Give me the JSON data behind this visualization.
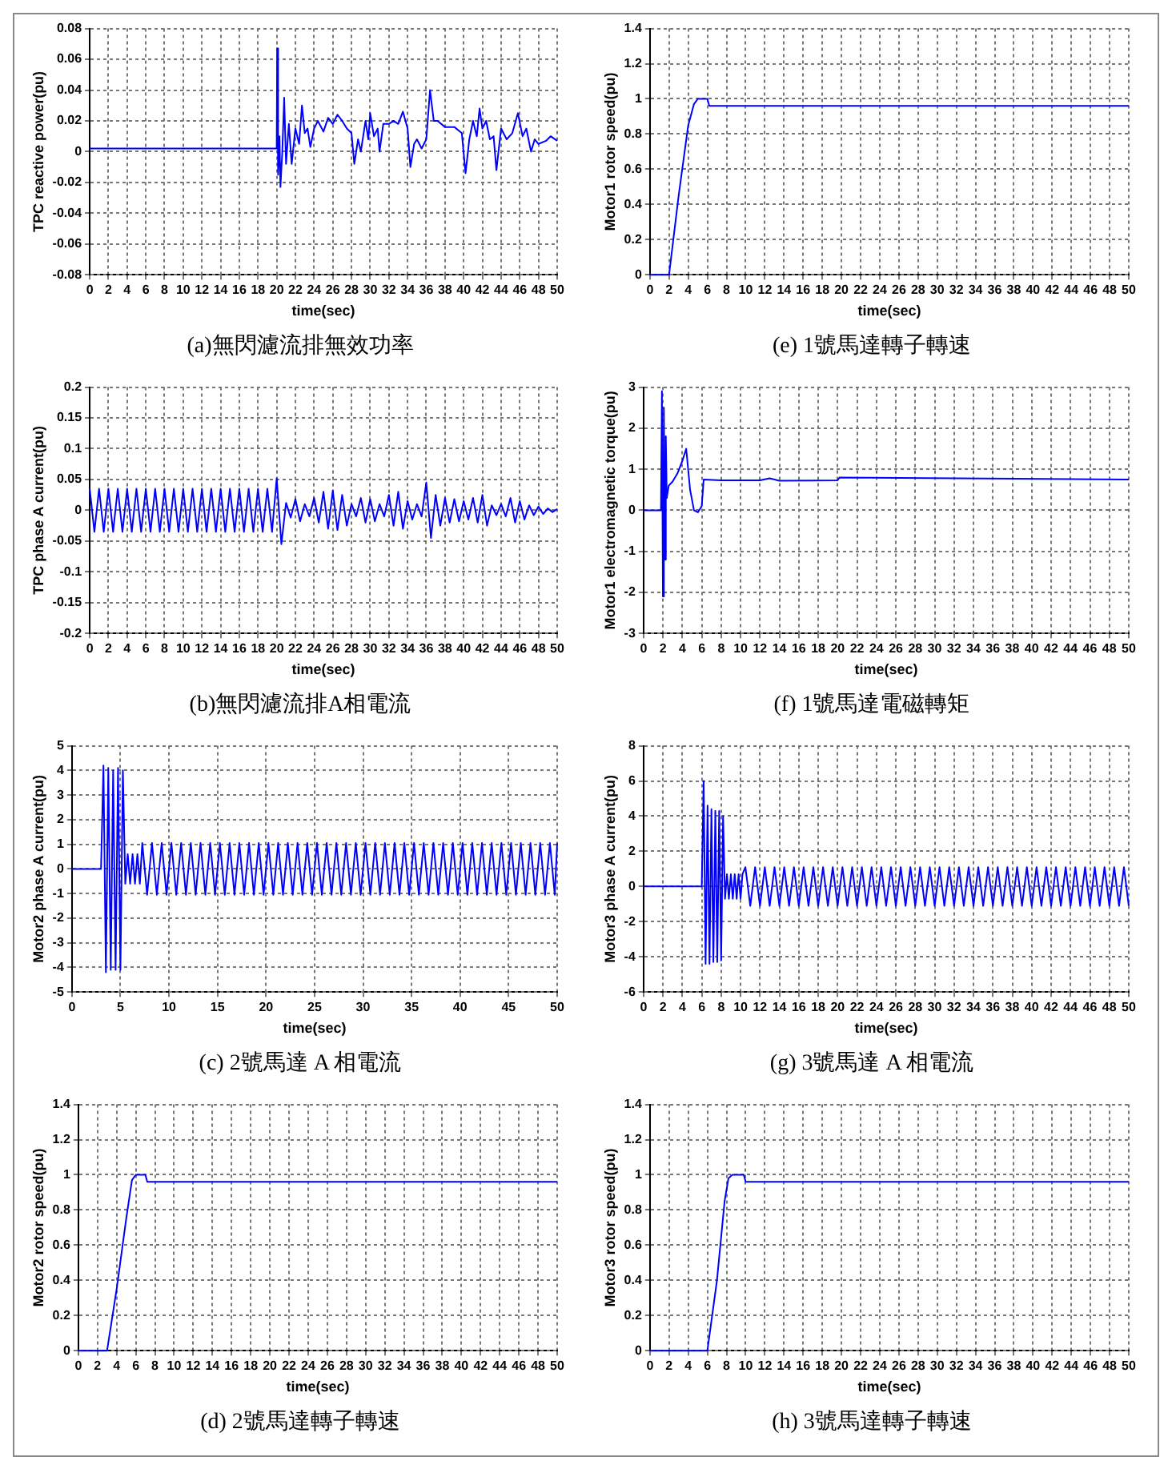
{
  "chart_data": [
    {
      "type": "line",
      "title": "(a)無閃濾流排無效功率",
      "xlabel": "time(sec)",
      "ylabel": "TPC reactive power(pu)",
      "xlim": [
        0,
        50
      ],
      "xticks": [
        0,
        2,
        4,
        6,
        8,
        10,
        12,
        14,
        16,
        18,
        20,
        22,
        24,
        26,
        28,
        30,
        32,
        34,
        36,
        38,
        40,
        42,
        44,
        46,
        48,
        50
      ],
      "ylim": [
        -0.08,
        0.08
      ],
      "yticks": [
        -0.08,
        -0.06,
        -0.04,
        -0.02,
        0,
        0.02,
        0.04,
        0.06,
        0.08
      ],
      "grid": true,
      "marker": "none",
      "line_style": "solid",
      "series": [
        {
          "color": "#0000ff",
          "x": [
            0,
            20,
            20.05,
            20.15,
            20.3,
            20.4,
            20.6,
            20.8,
            21,
            21.3,
            21.6,
            22,
            22.4,
            22.7,
            23,
            23.3,
            23.6,
            24,
            24.4,
            25,
            25.5,
            26,
            26.5,
            27,
            27.5,
            28,
            28.3,
            28.7,
            29,
            29.5,
            29.8,
            30,
            30.4,
            30.8,
            31,
            31.4,
            32,
            32.5,
            33,
            33.5,
            34,
            34.3,
            34.7,
            35,
            35.5,
            36,
            36.4,
            36.8,
            37.2,
            38,
            39,
            39.8,
            40.2,
            40.6,
            41,
            41.4,
            41.7,
            42,
            42.4,
            42.8,
            43.2,
            43.5,
            44,
            44.6,
            45.2,
            45.8,
            46.3,
            46.7,
            47.2,
            47.6,
            48,
            48.8,
            49.3,
            50
          ],
          "values": [
            0.002,
            0.002,
            0.067,
            -0.015,
            0.01,
            -0.023,
            0,
            0.035,
            -0.008,
            0.018,
            -0.008,
            0.015,
            0.005,
            0.03,
            0.012,
            0.015,
            0.003,
            0.015,
            0.02,
            0.013,
            0.022,
            0.018,
            0.024,
            0.02,
            0.015,
            0.012,
            -0.008,
            0.008,
            0,
            0.02,
            0.008,
            0.025,
            0.01,
            0.015,
            0,
            0.018,
            0.018,
            0.02,
            0.018,
            0.026,
            0.015,
            -0.01,
            0.005,
            0.008,
            0.002,
            0.008,
            0.04,
            0.02,
            0.02,
            0.016,
            0.016,
            0.012,
            -0.014,
            0.008,
            0.02,
            0.01,
            0.028,
            0.015,
            0.02,
            0.008,
            0.01,
            -0.012,
            0.015,
            0.008,
            0.012,
            0.025,
            0.01,
            0.015,
            0,
            0.008,
            0.005,
            0.007,
            0.01,
            0.007
          ]
        }
      ]
    },
    {
      "type": "line",
      "title": "(e) 1號馬達轉子轉速",
      "xlabel": "time(sec)",
      "ylabel": "Motor1 rotor speed(pu)",
      "xlim": [
        0,
        50
      ],
      "xticks": [
        0,
        2,
        4,
        6,
        8,
        10,
        12,
        14,
        16,
        18,
        20,
        22,
        24,
        26,
        28,
        30,
        32,
        34,
        36,
        38,
        40,
        42,
        44,
        46,
        48,
        50
      ],
      "ylim": [
        0,
        1.4
      ],
      "yticks": [
        0,
        0.2,
        0.4,
        0.6,
        0.8,
        1,
        1.2,
        1.4
      ],
      "grid": true,
      "marker": "none",
      "line_style": "solid",
      "series": [
        {
          "color": "#0000ff",
          "x": [
            0,
            2,
            3,
            4,
            4.6,
            5,
            5.8,
            6,
            6.2,
            8,
            12,
            16,
            50
          ],
          "values": [
            0,
            0,
            0.45,
            0.85,
            0.97,
            1,
            1,
            1,
            0.96,
            0.96,
            0.96,
            0.96,
            0.96
          ]
        }
      ]
    },
    {
      "type": "line",
      "title": "(b)無閃濾流排A相電流",
      "xlabel": "time(sec)",
      "ylabel": "TPC phase A current(pu)",
      "xlim": [
        0,
        50
      ],
      "xticks": [
        0,
        2,
        4,
        6,
        8,
        10,
        12,
        14,
        16,
        18,
        20,
        22,
        24,
        26,
        28,
        30,
        32,
        34,
        36,
        38,
        40,
        42,
        44,
        46,
        48,
        50
      ],
      "ylim": [
        -0.2,
        0.2
      ],
      "yticks": [
        -0.2,
        -0.15,
        -0.1,
        -0.05,
        0,
        0.05,
        0.1,
        0.15,
        0.2
      ],
      "grid": true,
      "marker": "none",
      "line_style": "solid",
      "series": [
        {
          "color": "#0000ff",
          "x": [
            0,
            0.5,
            1,
            1.5,
            2,
            2.5,
            3,
            3.5,
            4,
            4.5,
            5,
            5.5,
            6,
            6.5,
            7,
            7.5,
            8,
            8.5,
            9,
            9.5,
            10,
            10.5,
            11,
            11.5,
            12,
            12.5,
            13,
            13.5,
            14,
            14.5,
            15,
            15.5,
            16,
            16.5,
            17,
            17.5,
            18,
            18.5,
            19,
            19.5,
            20,
            20.5,
            21,
            21.5,
            22,
            22.5,
            23,
            23.5,
            24,
            24.5,
            25,
            25.5,
            26,
            26.5,
            27,
            27.5,
            28,
            28.5,
            29,
            29.5,
            30,
            30.5,
            31,
            31.5,
            32,
            32.5,
            33,
            33.5,
            34,
            34.5,
            35,
            35.5,
            36,
            36.5,
            37,
            37.5,
            38,
            38.5,
            39,
            39.5,
            40,
            40.5,
            41,
            41.5,
            42,
            42.5,
            43,
            43.5,
            44,
            44.5,
            45,
            45.5,
            46,
            46.5,
            47,
            47.5,
            48,
            48.5,
            49,
            49.5,
            50
          ],
          "values": [
            0.035,
            -0.035,
            0.035,
            -0.035,
            0.035,
            -0.035,
            0.035,
            -0.035,
            0.035,
            -0.035,
            0.035,
            -0.035,
            0.035,
            -0.035,
            0.035,
            -0.035,
            0.035,
            -0.035,
            0.035,
            -0.035,
            0.035,
            -0.035,
            0.035,
            -0.035,
            0.035,
            -0.035,
            0.035,
            -0.035,
            0.035,
            -0.035,
            0.035,
            -0.035,
            0.035,
            -0.035,
            0.035,
            -0.035,
            0.035,
            -0.035,
            0.035,
            -0.035,
            0.052,
            -0.055,
            0.012,
            -0.012,
            0.018,
            -0.018,
            0.01,
            -0.01,
            0.02,
            -0.02,
            0.03,
            -0.03,
            0.032,
            -0.032,
            0.025,
            -0.025,
            0.01,
            -0.01,
            0.02,
            -0.02,
            0.018,
            -0.018,
            0.01,
            -0.01,
            0.025,
            -0.025,
            0.03,
            -0.03,
            0.015,
            -0.015,
            0.01,
            -0.01,
            0.045,
            -0.045,
            0.025,
            -0.025,
            0.02,
            -0.02,
            0.018,
            -0.018,
            0.015,
            -0.015,
            0.02,
            -0.02,
            0.025,
            -0.025,
            0.008,
            -0.008,
            0.01,
            -0.01,
            0.02,
            -0.02,
            0.015,
            -0.015,
            0.008,
            -0.008,
            0.006,
            -0.006,
            0.003,
            -0.003,
            0.002
          ]
        }
      ]
    },
    {
      "type": "line",
      "title": "(f) 1號馬達電磁轉矩",
      "xlabel": "time(sec)",
      "ylabel": "Motor1 electromagnetic torque(pu)",
      "xlim": [
        0,
        50
      ],
      "xticks": [
        0,
        2,
        4,
        6,
        8,
        10,
        12,
        14,
        16,
        18,
        20,
        22,
        24,
        26,
        28,
        30,
        32,
        34,
        36,
        38,
        40,
        42,
        44,
        46,
        48,
        50
      ],
      "ylim": [
        -3,
        3
      ],
      "yticks": [
        -3,
        -2,
        -1,
        0,
        1,
        2,
        3
      ],
      "grid": true,
      "marker": "none",
      "line_style": "solid",
      "series": [
        {
          "color": "#0000ff",
          "x": [
            0,
            1.8,
            1.9,
            2,
            2.1,
            2.2,
            2.3,
            2.4,
            2.6,
            3,
            3.5,
            4,
            4.4,
            4.8,
            5.2,
            5.6,
            6,
            6.2,
            8,
            12,
            13,
            14,
            20,
            20.2,
            50
          ],
          "values": [
            0,
            0,
            2.9,
            -2.1,
            2.5,
            -1.2,
            1.8,
            0.3,
            0.6,
            0.7,
            0.9,
            1.2,
            1.5,
            0.5,
            0,
            -0.05,
            0.1,
            0.75,
            0.73,
            0.73,
            0.78,
            0.72,
            0.73,
            0.8,
            0.75
          ]
        }
      ]
    },
    {
      "type": "line",
      "title": "(c) 2號馬達 A 相電流",
      "xlabel": "time(sec)",
      "ylabel": "Motor2 phase A current(pu)",
      "xlim": [
        0,
        50
      ],
      "xticks": [
        0,
        5,
        10,
        15,
        20,
        25,
        30,
        35,
        40,
        45,
        50
      ],
      "ylim": [
        -5,
        5
      ],
      "yticks": [
        -5,
        -4,
        -3,
        -2,
        -1,
        0,
        1,
        2,
        3,
        4,
        5
      ],
      "grid": true,
      "marker": "none",
      "line_style": "solid",
      "series": [
        {
          "color": "#0000ff",
          "x": [
            0,
            3,
            3.25,
            3.5,
            3.75,
            4,
            4.25,
            4.5,
            4.75,
            5,
            5.25,
            5.5,
            5.75,
            6,
            6.25,
            6.5,
            6.75,
            7,
            7.25,
            7.75,
            8.25,
            8.75,
            9.25,
            9.75,
            10.25,
            10.75,
            11.25,
            11.75,
            12.25,
            12.75,
            13.25,
            13.75,
            14.25,
            14.75,
            15.25,
            15.75,
            16.25,
            16.75,
            17.25,
            17.75,
            18.25,
            18.75,
            19.25,
            19.75,
            20.25,
            20.75,
            21.25,
            21.75,
            22.25,
            22.75,
            23.25,
            23.75,
            24.25,
            24.75,
            25.25,
            25.75,
            26.25,
            26.75,
            27.25,
            27.75,
            28.25,
            28.75,
            29.25,
            29.75,
            30.25,
            30.75,
            31.25,
            31.75,
            32.25,
            32.75,
            33.25,
            33.75,
            34.25,
            34.75,
            35.25,
            35.75,
            36.25,
            36.75,
            37.25,
            37.75,
            38.25,
            38.75,
            39.25,
            39.75,
            40.25,
            40.75,
            41.25,
            41.75,
            42.25,
            42.75,
            43.25,
            43.75,
            44.25,
            44.75,
            45.25,
            45.75,
            46.25,
            46.75,
            47.25,
            47.75,
            48.25,
            48.75,
            49.25,
            49.75,
            50
          ],
          "values": [
            0,
            0,
            4.2,
            -4.2,
            4.1,
            -4.1,
            4,
            -4.1,
            4.1,
            -4.1,
            4,
            -0.6,
            0.6,
            -0.6,
            0.6,
            -0.6,
            0.6,
            -0.6,
            1.05,
            -1.05,
            1.05,
            -1.05,
            1.05,
            -1.05,
            1.05,
            -1.05,
            1.05,
            -1.05,
            1.05,
            -1.05,
            1.05,
            -1.05,
            1.05,
            -1.05,
            1.05,
            -1.05,
            1.05,
            -1.05,
            1.05,
            -1.05,
            1.05,
            -1.05,
            1.05,
            -1.05,
            1.05,
            -1.05,
            1.05,
            -1.05,
            1.05,
            -1.05,
            1.05,
            -1.05,
            1.05,
            -1.05,
            1.05,
            -1.05,
            1.05,
            -1.05,
            1.05,
            -1.05,
            1.05,
            -1.05,
            1.05,
            -1.05,
            1.05,
            -1.05,
            1.05,
            -1.05,
            1.05,
            -1.05,
            1.05,
            -1.05,
            1.05,
            -1.05,
            1.05,
            -1.05,
            1.05,
            -1.05,
            1.05,
            -1.05,
            1.05,
            -1.05,
            1.05,
            -1.05,
            1.05,
            -1.05,
            1.05,
            -1.05,
            1.05,
            -1.05,
            1.05,
            -1.05,
            1.05,
            -1.05,
            1.05,
            -1.05,
            1.05,
            -1.05,
            1.05,
            -1.05,
            1.05,
            -1.05,
            1.05,
            -1.05,
            1.05
          ]
        }
      ]
    },
    {
      "type": "line",
      "title": "(g) 3號馬達 A 相電流",
      "xlabel": "time(sec)",
      "ylabel": "Motor3 phase A current(pu)",
      "xlim": [
        0,
        50
      ],
      "xticks": [
        0,
        2,
        4,
        6,
        8,
        10,
        12,
        14,
        16,
        18,
        20,
        22,
        24,
        26,
        28,
        30,
        32,
        34,
        36,
        38,
        40,
        42,
        44,
        46,
        48,
        50
      ],
      "ylim": [
        -6,
        8
      ],
      "yticks": [
        -6,
        -4,
        -2,
        0,
        2,
        4,
        6,
        8
      ],
      "grid": true,
      "marker": "none",
      "line_style": "solid",
      "series": [
        {
          "color": "#0000ff",
          "x": [
            0,
            6,
            6.2,
            6.4,
            6.6,
            6.8,
            7,
            7.2,
            7.4,
            7.6,
            7.8,
            8,
            8.2,
            8.4,
            8.6,
            8.8,
            9,
            9.2,
            9.4,
            9.6,
            9.8,
            10,
            10.2,
            10.5,
            11,
            11.5,
            12,
            12.5,
            13,
            13.5,
            14,
            14.5,
            15,
            15.5,
            16,
            16.5,
            17,
            17.5,
            18,
            18.5,
            19,
            19.5,
            20,
            20.5,
            21,
            21.5,
            22,
            22.5,
            23,
            23.5,
            24,
            24.5,
            25,
            25.5,
            26,
            26.5,
            27,
            27.5,
            28,
            28.5,
            29,
            29.5,
            30,
            30.5,
            31,
            31.5,
            32,
            32.5,
            33,
            33.5,
            34,
            34.5,
            35,
            35.5,
            36,
            36.5,
            37,
            37.5,
            38,
            38.5,
            39,
            39.5,
            40,
            40.5,
            41,
            41.5,
            42,
            42.5,
            43,
            43.5,
            44,
            44.5,
            45,
            45.5,
            46,
            46.5,
            47,
            47.5,
            48,
            48.5,
            49,
            49.5,
            50
          ],
          "values": [
            0,
            0,
            6,
            -4.4,
            4.6,
            -4.4,
            4.4,
            -4.3,
            4.3,
            -4.3,
            4.3,
            -4.2,
            4,
            -0.7,
            0.7,
            -0.7,
            0.7,
            -0.7,
            0.7,
            -0.7,
            0.7,
            -0.7,
            0.7,
            1.1,
            -1.1,
            1.1,
            -1.1,
            1.1,
            -1.1,
            1.1,
            -1.1,
            1.1,
            -1.1,
            1.1,
            -1.1,
            1.1,
            -1.1,
            1.1,
            -1.1,
            1.1,
            -1.1,
            1.1,
            -1.1,
            1.1,
            -1.1,
            1.1,
            -1.1,
            1.1,
            -1.1,
            1.1,
            -1.1,
            1.1,
            -1.1,
            1.1,
            -1.1,
            1.1,
            -1.1,
            1.1,
            -1.1,
            1.1,
            -1.1,
            1.1,
            -1.1,
            1.1,
            -1.1,
            1.1,
            -1.1,
            1.1,
            -1.1,
            1.1,
            -1.1,
            1.1,
            -1.1,
            1.1,
            -1.1,
            1.1,
            -1.1,
            1.1,
            -1.1,
            1.1,
            -1.1,
            1.1,
            -1.1,
            1.1,
            -1.1,
            1.1,
            -1.1,
            1.1,
            -1.1,
            1.1,
            -1.1,
            1.1,
            -1.1,
            1.1,
            -1.1,
            1.1,
            -1.1,
            1.1,
            -1.1,
            1.1,
            -1.1,
            1.1,
            -1.1
          ]
        }
      ]
    },
    {
      "type": "line",
      "title": "(d) 2號馬達轉子轉速",
      "xlabel": "time(sec)",
      "ylabel": "Motor2 rotor speed(pu)",
      "xlim": [
        0,
        50
      ],
      "xticks": [
        0,
        2,
        4,
        6,
        8,
        10,
        12,
        14,
        16,
        18,
        20,
        22,
        24,
        26,
        28,
        30,
        32,
        34,
        36,
        38,
        40,
        42,
        44,
        46,
        48,
        50
      ],
      "ylim": [
        0,
        1.4
      ],
      "yticks": [
        0,
        0.2,
        0.4,
        0.6,
        0.8,
        1,
        1.2,
        1.4
      ],
      "grid": true,
      "marker": "none",
      "line_style": "solid",
      "series": [
        {
          "color": "#0000ff",
          "x": [
            0,
            3,
            4,
            5,
            5.6,
            6,
            6.8,
            7,
            7.2,
            9,
            12,
            16,
            50
          ],
          "values": [
            0,
            0,
            0.35,
            0.75,
            0.97,
            1,
            1,
            1,
            0.96,
            0.96,
            0.96,
            0.96,
            0.96
          ]
        }
      ]
    },
    {
      "type": "line",
      "title": "(h) 3號馬達轉子轉速",
      "xlabel": "time(sec)",
      "ylabel": "Motor3 rotor speed(pu)",
      "xlim": [
        0,
        50
      ],
      "xticks": [
        0,
        2,
        4,
        6,
        8,
        10,
        12,
        14,
        16,
        18,
        20,
        22,
        24,
        26,
        28,
        30,
        32,
        34,
        36,
        38,
        40,
        42,
        44,
        46,
        48,
        50
      ],
      "ylim": [
        0,
        1.4
      ],
      "yticks": [
        0,
        0.2,
        0.4,
        0.6,
        0.8,
        1,
        1.2,
        1.4
      ],
      "grid": true,
      "marker": "none",
      "line_style": "solid",
      "series": [
        {
          "color": "#0000ff",
          "x": [
            0,
            6,
            7,
            7.8,
            8.2,
            8.6,
            9.6,
            9.8,
            10,
            12,
            14,
            16,
            50
          ],
          "values": [
            0,
            0,
            0.4,
            0.85,
            0.98,
            1,
            1,
            1,
            0.96,
            0.96,
            0.96,
            0.96,
            0.96
          ]
        }
      ]
    }
  ]
}
